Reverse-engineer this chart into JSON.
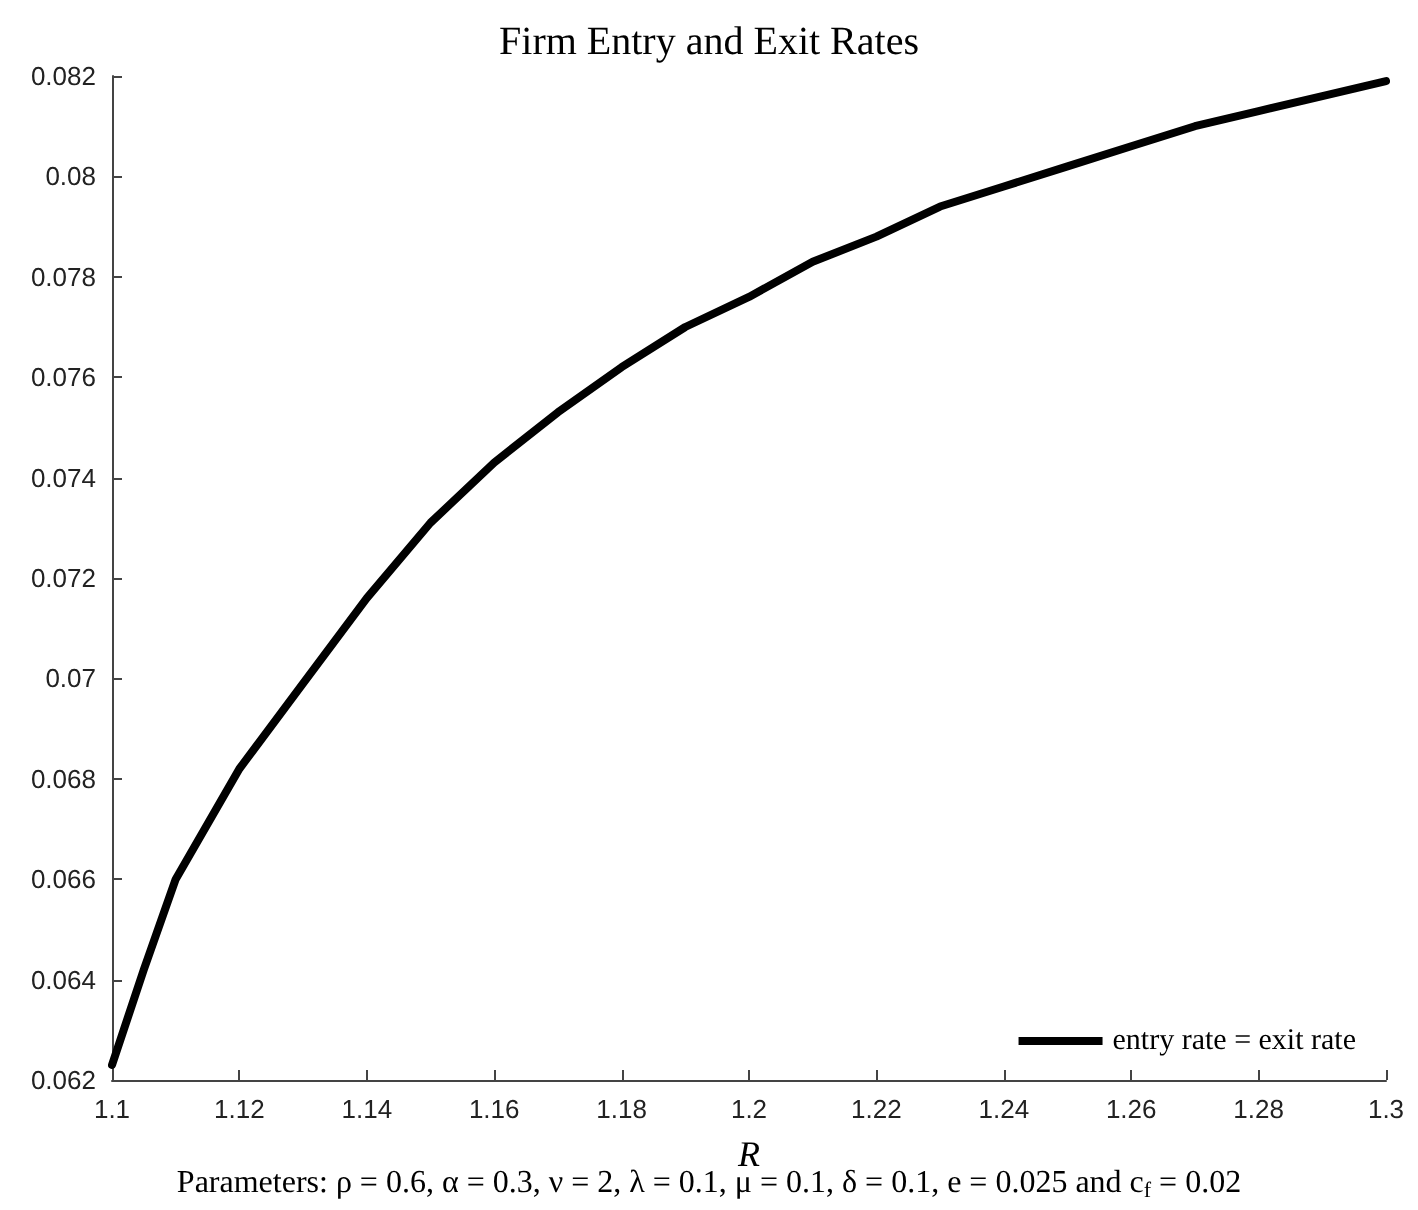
{
  "chart_data": {
    "type": "line",
    "title": "Firm Entry and Exit Rates",
    "xlabel": "R",
    "annotations": [
      "Parameters: ρ = 0.6, α = 0.3, ν = 2, λ = 0.1, μ = 0.1, δ = 0.1, e = 0.025 and c$_{f}$ = 0.02"
    ],
    "xlim": [
      1.1,
      1.3
    ],
    "xticks": [
      1.1,
      1.12,
      1.14,
      1.16,
      1.18,
      1.2,
      1.22,
      1.24,
      1.26,
      1.28,
      1.3
    ],
    "ylim": [
      0.062,
      0.082
    ],
    "yticks": [
      0.062,
      0.064,
      0.066,
      0.068,
      0.07,
      0.072,
      0.074,
      0.076,
      0.078,
      0.08,
      0.082
    ],
    "grid": false,
    "legend": "bottom right",
    "marker": "none",
    "line_style": "solid",
    "series": [
      {
        "name": "entry rate = exit rate",
        "color": "#000000",
        "x": [
          1.1,
          1.105,
          1.11,
          1.12,
          1.13,
          1.14,
          1.15,
          1.16,
          1.17,
          1.18,
          1.19,
          1.2,
          1.21,
          1.22,
          1.23,
          1.24,
          1.25,
          1.26,
          1.27,
          1.28,
          1.29,
          1.3
        ],
        "values": [
          0.0623,
          0.0642,
          0.066,
          0.0682,
          0.0699,
          0.0716,
          0.0731,
          0.0743,
          0.0753,
          0.0762,
          0.077,
          0.0776,
          0.0783,
          0.0788,
          0.0794,
          0.0798,
          0.0802,
          0.0806,
          0.081,
          0.0813,
          0.0816,
          0.0819
        ]
      }
    ]
  }
}
